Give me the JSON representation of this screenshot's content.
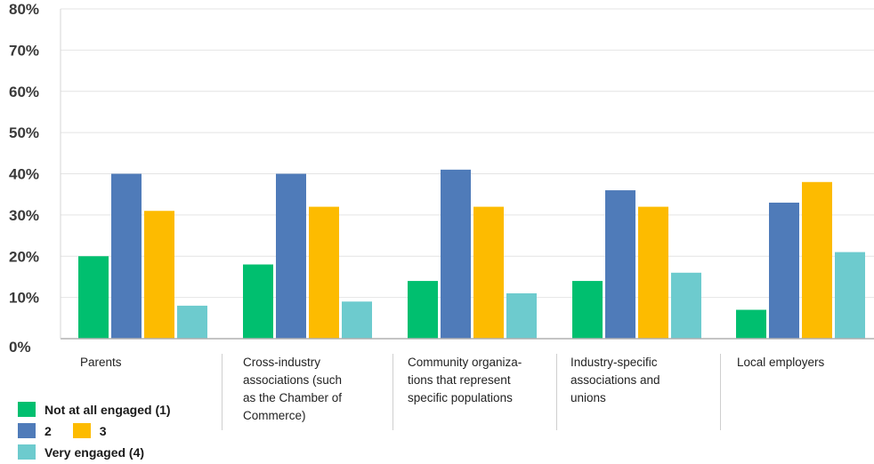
{
  "chart_data": {
    "type": "bar",
    "title": "",
    "xlabel": "",
    "ylabel": "",
    "ylim": [
      0,
      80
    ],
    "yticks": [
      "0%",
      "10%",
      "20%",
      "30%",
      "40%",
      "50%",
      "60%",
      "70%",
      "80%"
    ],
    "categories": [
      "Parents",
      "Cross-industry associations (such as the Chamber of Commerce)",
      "Community organizations that represent specific populations",
      "Industry-specific associations and unions",
      "Local employers"
    ],
    "category_lines": [
      [
        "Parents"
      ],
      [
        "Cross-industry",
        "associations (such",
        "as the Chamber of",
        "Commerce)"
      ],
      [
        "Community organiza-",
        "tions that represent",
        "specific populations"
      ],
      [
        "Industry-specific",
        "associations and",
        "unions"
      ],
      [
        "Local employers"
      ]
    ],
    "series": [
      {
        "name": "Not at all engaged (1)",
        "color": "#00bf6f",
        "values": [
          20,
          18,
          14,
          14,
          7
        ]
      },
      {
        "name": "2",
        "color": "#4f7bb9",
        "values": [
          40,
          40,
          41,
          36,
          33
        ]
      },
      {
        "name": "3",
        "color": "#fdbb00",
        "values": [
          31,
          32,
          32,
          32,
          38
        ]
      },
      {
        "name": "Very engaged (4)",
        "color": "#6dcbce",
        "values": [
          8,
          9,
          11,
          16,
          21
        ]
      }
    ],
    "grid": true,
    "legend_position": "bottom-left"
  }
}
